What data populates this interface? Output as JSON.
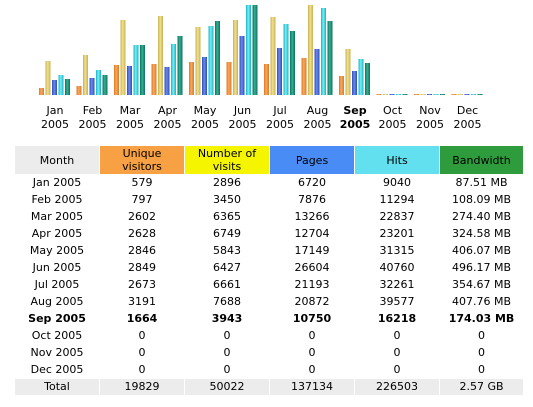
{
  "colors": {
    "unique_visitors": "#f7a044",
    "number_of_visits": "#f5f500",
    "pages": "#4a8cf5",
    "hits": "#63e0f0",
    "bandwidth": "#2e9c3c",
    "header_gray": "#ececec"
  },
  "chart_data": {
    "type": "bar",
    "categories": [
      {
        "month": "Jan",
        "year": "2005",
        "current": false
      },
      {
        "month": "Feb",
        "year": "2005",
        "current": false
      },
      {
        "month": "Mar",
        "year": "2005",
        "current": false
      },
      {
        "month": "Apr",
        "year": "2005",
        "current": false
      },
      {
        "month": "May",
        "year": "2005",
        "current": false
      },
      {
        "month": "Jun",
        "year": "2005",
        "current": false
      },
      {
        "month": "Jul",
        "year": "2005",
        "current": false
      },
      {
        "month": "Aug",
        "year": "2005",
        "current": false
      },
      {
        "month": "Sep",
        "year": "2005",
        "current": true
      },
      {
        "month": "Oct",
        "year": "2005",
        "current": false
      },
      {
        "month": "Nov",
        "year": "2005",
        "current": false
      },
      {
        "month": "Dec",
        "year": "2005",
        "current": false
      }
    ],
    "series": [
      {
        "name": "Unique visitors",
        "values": [
          579,
          797,
          2602,
          2628,
          2846,
          2849,
          2673,
          3191,
          1664,
          0,
          0,
          0
        ],
        "color": "#e07820",
        "light": "#f5a860"
      },
      {
        "name": "Number of visits",
        "values": [
          2896,
          3450,
          6365,
          6749,
          5843,
          6427,
          6661,
          7688,
          3943,
          0,
          0,
          0
        ],
        "color": "#c8b050",
        "light": "#f0e090"
      },
      {
        "name": "Pages",
        "values": [
          6720,
          7876,
          13266,
          12704,
          17149,
          26604,
          21193,
          20872,
          10750,
          0,
          0,
          0
        ],
        "color": "#2c4cc0",
        "light": "#6a8ae8"
      },
      {
        "name": "Hits",
        "values": [
          9040,
          11294,
          22837,
          23201,
          31315,
          40760,
          32261,
          39577,
          16218,
          0,
          0,
          0
        ],
        "color": "#20b0c0",
        "light": "#70f0f8"
      },
      {
        "name": "Bandwidth",
        "values": [
          87.51,
          108.09,
          274.4,
          324.58,
          406.07,
          496.17,
          354.67,
          407.76,
          174.03,
          0,
          0,
          0
        ],
        "color": "#107060",
        "light": "#30b090"
      }
    ],
    "group_scales": {
      "visitors": 7688,
      "pages_hits": 40760,
      "bandwidth": 496.17
    }
  },
  "table": {
    "headers": {
      "month": "Month",
      "unique_visitors": "Unique visitors",
      "number_of_visits": "Number of visits",
      "pages": "Pages",
      "hits": "Hits",
      "bandwidth": "Bandwidth"
    },
    "rows": [
      {
        "month": "Jan 2005",
        "unique": "579",
        "visits": "2896",
        "pages": "6720",
        "hits": "9040",
        "bandwidth": "87.51 MB",
        "current": false
      },
      {
        "month": "Feb 2005",
        "unique": "797",
        "visits": "3450",
        "pages": "7876",
        "hits": "11294",
        "bandwidth": "108.09 MB",
        "current": false
      },
      {
        "month": "Mar 2005",
        "unique": "2602",
        "visits": "6365",
        "pages": "13266",
        "hits": "22837",
        "bandwidth": "274.40 MB",
        "current": false
      },
      {
        "month": "Apr 2005",
        "unique": "2628",
        "visits": "6749",
        "pages": "12704",
        "hits": "23201",
        "bandwidth": "324.58 MB",
        "current": false
      },
      {
        "month": "May 2005",
        "unique": "2846",
        "visits": "5843",
        "pages": "17149",
        "hits": "31315",
        "bandwidth": "406.07 MB",
        "current": false
      },
      {
        "month": "Jun 2005",
        "unique": "2849",
        "visits": "6427",
        "pages": "26604",
        "hits": "40760",
        "bandwidth": "496.17 MB",
        "current": false
      },
      {
        "month": "Jul 2005",
        "unique": "2673",
        "visits": "6661",
        "pages": "21193",
        "hits": "32261",
        "bandwidth": "354.67 MB",
        "current": false
      },
      {
        "month": "Aug 2005",
        "unique": "3191",
        "visits": "7688",
        "pages": "20872",
        "hits": "39577",
        "bandwidth": "407.76 MB",
        "current": false
      },
      {
        "month": "Sep 2005",
        "unique": "1664",
        "visits": "3943",
        "pages": "10750",
        "hits": "16218",
        "bandwidth": "174.03 MB",
        "current": true
      },
      {
        "month": "Oct 2005",
        "unique": "0",
        "visits": "0",
        "pages": "0",
        "hits": "0",
        "bandwidth": "0",
        "current": false
      },
      {
        "month": "Nov 2005",
        "unique": "0",
        "visits": "0",
        "pages": "0",
        "hits": "0",
        "bandwidth": "0",
        "current": false
      },
      {
        "month": "Dec 2005",
        "unique": "0",
        "visits": "0",
        "pages": "0",
        "hits": "0",
        "bandwidth": "0",
        "current": false
      }
    ],
    "total": {
      "label": "Total",
      "unique": "19829",
      "visits": "50022",
      "pages": "137134",
      "hits": "226503",
      "bandwidth": "2.57 GB"
    }
  }
}
